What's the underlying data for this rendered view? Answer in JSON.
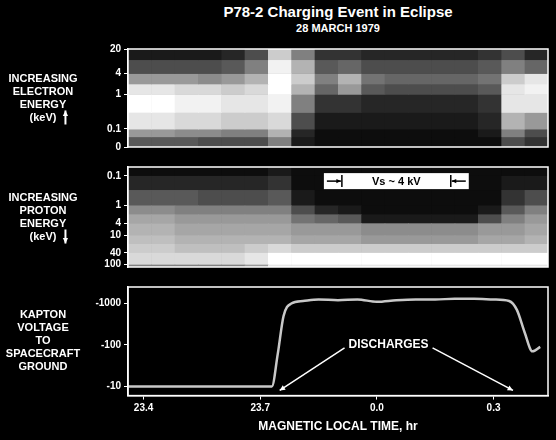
{
  "chart_data": [
    {
      "type": "heatmap",
      "title": "P78-2 Charging Event in Eclipse",
      "subtitle": "28 MARCH 1979",
      "y_label": "INCREASING ELECTRON ENERGY (keV)",
      "log": "y",
      "grid": false,
      "tick_labels": "y",
      "xlim": [
        23.36,
        24.44
      ],
      "ylim": [
        0.03,
        20
      ],
      "yticks": [
        {
          "value": 0.03,
          "label": "0"
        },
        0.1,
        1,
        4,
        20
      ],
      "x_edges": [
        23.36,
        23.42,
        23.48,
        23.54,
        23.6,
        23.66,
        23.72,
        23.78,
        23.84,
        23.9,
        23.96,
        24.02,
        24.08,
        24.14,
        24.2,
        24.26,
        24.32,
        24.38,
        24.44
      ],
      "y_edges": [
        0.03,
        0.06,
        0.1,
        0.3,
        1,
        2,
        4,
        10,
        20
      ],
      "intensity": [
        [
          0.35,
          0.35,
          0.35,
          0.3,
          0.3,
          0.3,
          0.5,
          0.1,
          0.05,
          0.05,
          0.05,
          0.05,
          0.05,
          0.05,
          0.05,
          0.05,
          0.3,
          0.2
        ],
        [
          0.6,
          0.6,
          0.55,
          0.55,
          0.5,
          0.5,
          0.7,
          0.15,
          0.05,
          0.05,
          0.05,
          0.05,
          0.05,
          0.05,
          0.05,
          0.1,
          0.5,
          0.3
        ],
        [
          0.9,
          0.9,
          0.85,
          0.85,
          0.8,
          0.8,
          0.85,
          0.3,
          0.1,
          0.1,
          0.1,
          0.1,
          0.1,
          0.1,
          0.1,
          0.15,
          0.7,
          0.6
        ],
        [
          1,
          1,
          0.95,
          0.95,
          0.9,
          0.9,
          0.95,
          0.5,
          0.2,
          0.2,
          0.15,
          0.15,
          0.15,
          0.15,
          0.15,
          0.2,
          0.9,
          0.9
        ],
        [
          0.9,
          0.9,
          0.85,
          0.85,
          0.8,
          0.85,
          1,
          0.7,
          0.4,
          0.6,
          0.35,
          0.3,
          0.3,
          0.3,
          0.3,
          0.35,
          0.9,
          0.95
        ],
        [
          0.6,
          0.6,
          0.6,
          0.55,
          0.6,
          0.7,
          1,
          0.8,
          0.5,
          0.7,
          0.45,
          0.4,
          0.4,
          0.4,
          0.4,
          0.45,
          0.8,
          0.9
        ],
        [
          0.3,
          0.3,
          0.3,
          0.3,
          0.35,
          0.5,
          0.95,
          0.7,
          0.35,
          0.4,
          0.3,
          0.3,
          0.3,
          0.3,
          0.3,
          0.35,
          0.5,
          0.4
        ],
        [
          0.1,
          0.1,
          0.1,
          0.1,
          0.15,
          0.3,
          0.8,
          0.5,
          0.2,
          0.2,
          0.15,
          0.15,
          0.15,
          0.15,
          0.15,
          0.2,
          0.3,
          0.15
        ]
      ]
    },
    {
      "type": "heatmap",
      "y_label": "INCREASING PROTON ENERGY (keV)",
      "log": "y",
      "grid": false,
      "tick_labels": "y",
      "xlim": [
        23.36,
        24.44
      ],
      "ylim": [
        120,
        0.05
      ],
      "yticks": [
        0.1,
        1,
        4,
        10,
        40,
        100
      ],
      "x_edges": [
        23.36,
        23.42,
        23.48,
        23.54,
        23.6,
        23.66,
        23.72,
        23.78,
        23.84,
        23.9,
        23.96,
        24.02,
        24.08,
        24.14,
        24.2,
        24.26,
        24.32,
        24.38,
        24.44
      ],
      "y_edges": [
        0.05,
        0.1,
        0.3,
        1,
        2,
        4,
        10,
        20,
        40,
        100,
        120
      ],
      "intensity": [
        [
          0.05,
          0.05,
          0.05,
          0.05,
          0.05,
          0.05,
          0.1,
          0.05,
          0.05,
          0.05,
          0.05,
          0.05,
          0.05,
          0.05,
          0.05,
          0.05,
          0.05,
          0.05
        ],
        [
          0.15,
          0.15,
          0.15,
          0.15,
          0.15,
          0.15,
          0.2,
          0.05,
          0.05,
          0.05,
          0.05,
          0.05,
          0.05,
          0.05,
          0.05,
          0.05,
          0.1,
          0.1
        ],
        [
          0.35,
          0.35,
          0.35,
          0.3,
          0.3,
          0.3,
          0.35,
          0.1,
          0.05,
          0.05,
          0.05,
          0.05,
          0.05,
          0.05,
          0.05,
          0.05,
          0.2,
          0.3
        ],
        [
          0.55,
          0.55,
          0.5,
          0.5,
          0.5,
          0.5,
          0.5,
          0.3,
          0.15,
          0.1,
          0.05,
          0.05,
          0.05,
          0.05,
          0.05,
          0.1,
          0.35,
          0.5
        ],
        [
          0.65,
          0.65,
          0.6,
          0.6,
          0.6,
          0.6,
          0.6,
          0.45,
          0.4,
          0.35,
          0.1,
          0.1,
          0.1,
          0.1,
          0.1,
          0.3,
          0.5,
          0.6
        ],
        [
          0.7,
          0.7,
          0.65,
          0.65,
          0.65,
          0.65,
          0.65,
          0.6,
          0.6,
          0.6,
          0.55,
          0.55,
          0.55,
          0.55,
          0.55,
          0.6,
          0.6,
          0.65
        ],
        [
          0.75,
          0.75,
          0.7,
          0.7,
          0.7,
          0.7,
          0.7,
          0.65,
          0.65,
          0.65,
          0.6,
          0.6,
          0.6,
          0.6,
          0.6,
          0.65,
          0.65,
          0.7
        ],
        [
          0.8,
          0.8,
          0.75,
          0.75,
          0.75,
          0.8,
          0.85,
          0.8,
          0.8,
          0.8,
          0.8,
          0.8,
          0.8,
          0.8,
          0.8,
          0.8,
          0.8,
          0.8
        ],
        [
          0.85,
          0.85,
          0.85,
          0.85,
          0.85,
          0.9,
          1,
          1,
          1,
          1,
          1,
          1,
          1,
          1,
          1,
          1,
          1,
          1
        ],
        [
          0.5,
          0.5,
          0.5,
          0.5,
          0.5,
          0.6,
          0.9,
          0.9,
          0.9,
          0.9,
          0.9,
          0.9,
          0.9,
          0.9,
          0.9,
          0.9,
          0.9,
          0.9
        ]
      ],
      "annotations": [
        {
          "text": "Vs ~ 4 kV",
          "x": [
            23.91,
            24.19
          ],
          "y": 0.15
        }
      ]
    },
    {
      "type": "line",
      "y_label": "KAPTON VOLTAGE TO SPACECRAFT GROUND",
      "x_label": "MAGNETIC LOCAL TIME, hr",
      "log": "y",
      "grid": false,
      "color": "#c8c8c8",
      "xlim": [
        23.36,
        24.44
      ],
      "xticks": [
        23.4,
        23.7,
        {
          "value": 24.0,
          "label": "0.0"
        },
        {
          "value": 24.3,
          "label": "0.3"
        }
      ],
      "ylim": [
        -6,
        -2500
      ],
      "yticks": [
        -1000,
        -100,
        -10
      ],
      "x": [
        23.36,
        23.5,
        23.65,
        23.73,
        23.745,
        23.76,
        23.78,
        23.81,
        23.85,
        23.9,
        23.95,
        24.0,
        24.05,
        24.1,
        24.15,
        24.2,
        24.25,
        24.3,
        24.34,
        24.36,
        24.38,
        24.4,
        24.42
      ],
      "values": [
        -10,
        -10,
        -10,
        -10,
        -60,
        -500,
        -1000,
        -1150,
        -1250,
        -1200,
        -1250,
        -1100,
        -1200,
        -1250,
        -1250,
        -1300,
        -1300,
        -1250,
        -1150,
        -700,
        -200,
        -70,
        -90
      ],
      "annotations": [
        {
          "text": "DISCHARGES",
          "x": 24.03,
          "y": -100,
          "points": [
            {
              "x": 23.75,
              "y": -8
            },
            {
              "x": 24.35,
              "y": -8
            }
          ]
        }
      ]
    }
  ]
}
